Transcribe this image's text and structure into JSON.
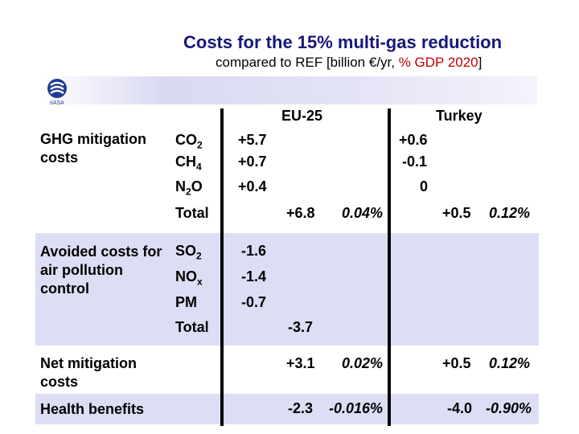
{
  "title": "Costs for the 15% multi-gas reduction",
  "subtitle": {
    "prefix": "compared to REF [billion €/yr, ",
    "highlight": "% GDP 2020",
    "suffix": "]"
  },
  "logo": {
    "icon": "organisation-logo",
    "caption": "IIASA"
  },
  "columns": {
    "eu": "EU-25",
    "turkey": "Turkey"
  },
  "ghg": {
    "label": "GHG mitigation costs",
    "rows": [
      {
        "gas": "CO",
        "sub": "2",
        "eu": "+5.7",
        "turkey": "+0.6"
      },
      {
        "gas": "CH",
        "sub": "4",
        "eu": "+0.7",
        "turkey": "-0.1"
      },
      {
        "gas": "N",
        "sub": "2",
        "tail": "O",
        "eu": "+0.4",
        "turkey": "0"
      }
    ],
    "total": {
      "label": "Total",
      "eu": "+6.8",
      "eu_pct": "0.04%",
      "turkey": "+0.5",
      "turkey_pct": "0.12%"
    }
  },
  "avoided": {
    "label": "Avoided costs for air pollution control",
    "rows": [
      {
        "gas": "SO",
        "sub": "2",
        "eu": "-1.6"
      },
      {
        "gas": "NO",
        "sub": "x",
        "eu": "-1.4"
      },
      {
        "gas": "PM",
        "sub": "",
        "eu": "-0.7"
      }
    ],
    "total": {
      "label": "Total",
      "eu": "-3.7"
    }
  },
  "net": {
    "label": "Net mitigation costs",
    "eu": "+3.1",
    "eu_pct": "0.02%",
    "turkey": "+0.5",
    "turkey_pct": "0.12%"
  },
  "health": {
    "label": "Health benefits",
    "eu": "-2.3",
    "eu_pct": "-0.016%",
    "turkey": "-4.0",
    "turkey_pct": "-0.90%"
  }
}
